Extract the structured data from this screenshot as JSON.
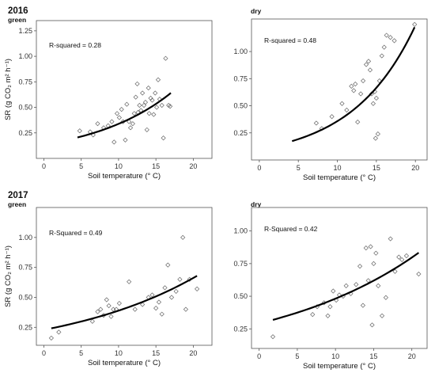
{
  "years": [
    "2016",
    "2017"
  ],
  "chart_data": [
    {
      "type": "scatter",
      "year": "2016",
      "panel": "green",
      "annotation": "R-squared = 0.28",
      "xlabel": "Soil temperature (° C)",
      "ylabel": "SR (g CO₂ m² h⁻¹)",
      "xlim": [
        -1,
        22.5
      ],
      "ylim": [
        0,
        1.35
      ],
      "xticks": [
        0,
        5,
        10,
        15,
        20
      ],
      "yticks": [
        0.25,
        0.5,
        0.75,
        1.0,
        1.25
      ],
      "ytick_labels": [
        "0.25",
        "0.50",
        "0.75",
        "1.00",
        "1.25"
      ],
      "points": [
        [
          4.8,
          0.27
        ],
        [
          6.2,
          0.26
        ],
        [
          6.6,
          0.23
        ],
        [
          7.2,
          0.34
        ],
        [
          8.0,
          0.3
        ],
        [
          8.6,
          0.32
        ],
        [
          9.1,
          0.36
        ],
        [
          9.4,
          0.16
        ],
        [
          9.8,
          0.44
        ],
        [
          10.1,
          0.4
        ],
        [
          10.4,
          0.48
        ],
        [
          10.6,
          0.36
        ],
        [
          10.9,
          0.18
        ],
        [
          11.1,
          0.53
        ],
        [
          11.4,
          0.36
        ],
        [
          11.6,
          0.3
        ],
        [
          11.9,
          0.34
        ],
        [
          12.1,
          0.44
        ],
        [
          12.3,
          0.6
        ],
        [
          12.5,
          0.73
        ],
        [
          12.6,
          0.45
        ],
        [
          12.8,
          0.52
        ],
        [
          13.0,
          0.47
        ],
        [
          13.2,
          0.64
        ],
        [
          13.4,
          0.52
        ],
        [
          13.6,
          0.55
        ],
        [
          13.8,
          0.28
        ],
        [
          14.0,
          0.69
        ],
        [
          14.1,
          0.44
        ],
        [
          14.3,
          0.59
        ],
        [
          14.5,
          0.57
        ],
        [
          14.7,
          0.43
        ],
        [
          14.9,
          0.64
        ],
        [
          15.1,
          0.5
        ],
        [
          15.3,
          0.77
        ],
        [
          15.5,
          0.58
        ],
        [
          15.8,
          0.52
        ],
        [
          16.0,
          0.2
        ],
        [
          16.3,
          0.98
        ],
        [
          16.7,
          0.52
        ],
        [
          16.9,
          0.51
        ]
      ],
      "fit": {
        "x0": 4.5,
        "x1": 17.0,
        "a": 0.1357,
        "b": 0.0913
      }
    },
    {
      "type": "scatter",
      "year": "2016",
      "panel": "dry",
      "annotation": "R-squared = 0.48",
      "xlabel": "Soil temperature (° C)",
      "ylabel": "",
      "xlim": [
        -1,
        21.5
      ],
      "ylim": [
        0,
        1.3
      ],
      "xticks": [
        0,
        5,
        10,
        15,
        20
      ],
      "yticks": [
        0.25,
        0.5,
        0.75,
        1.0
      ],
      "ytick_labels": [
        "0.25",
        "0.50",
        "0.75",
        "1.00"
      ],
      "points": [
        [
          7.3,
          0.34
        ],
        [
          8.0,
          0.29
        ],
        [
          9.3,
          0.4
        ],
        [
          10.6,
          0.52
        ],
        [
          11.2,
          0.46
        ],
        [
          11.8,
          0.68
        ],
        [
          12.1,
          0.64
        ],
        [
          12.3,
          0.7
        ],
        [
          12.6,
          0.35
        ],
        [
          13.0,
          0.61
        ],
        [
          13.3,
          0.73
        ],
        [
          13.7,
          0.88
        ],
        [
          14.0,
          0.91
        ],
        [
          14.2,
          0.83
        ],
        [
          14.4,
          0.61
        ],
        [
          14.6,
          0.52
        ],
        [
          14.8,
          0.63
        ],
        [
          14.9,
          0.2
        ],
        [
          15.0,
          0.57
        ],
        [
          15.2,
          0.24
        ],
        [
          15.4,
          0.73
        ],
        [
          15.7,
          0.96
        ],
        [
          16.0,
          1.04
        ],
        [
          16.3,
          1.15
        ],
        [
          16.8,
          1.13
        ],
        [
          17.3,
          1.1
        ],
        [
          19.9,
          1.25
        ]
      ],
      "fit": {
        "x0": 4.2,
        "x1": 19.9,
        "a": 0.1032,
        "b": 0.1243
      }
    },
    {
      "type": "scatter",
      "year": "2017",
      "panel": "green",
      "annotation": "R-Squared = 0.49",
      "xlabel": "Soil temperature (° C)",
      "ylabel": "SR (g CO₂ m² h⁻¹)",
      "xlim": [
        -1,
        22.5
      ],
      "ylim": [
        0.1,
        1.25
      ],
      "xticks": [
        0,
        5,
        10,
        15,
        20
      ],
      "yticks": [
        0.25,
        0.5,
        0.75,
        1.0
      ],
      "ytick_labels": [
        "0.25",
        "0.50",
        "0.75",
        "1.00"
      ],
      "points": [
        [
          1.0,
          0.16
        ],
        [
          2.0,
          0.21
        ],
        [
          6.5,
          0.3
        ],
        [
          7.2,
          0.38
        ],
        [
          7.6,
          0.4
        ],
        [
          8.0,
          0.35
        ],
        [
          8.4,
          0.48
        ],
        [
          8.7,
          0.43
        ],
        [
          9.0,
          0.34
        ],
        [
          9.3,
          0.4
        ],
        [
          9.7,
          0.4
        ],
        [
          10.1,
          0.45
        ],
        [
          11.4,
          0.63
        ],
        [
          12.2,
          0.4
        ],
        [
          13.2,
          0.44
        ],
        [
          14.0,
          0.5
        ],
        [
          14.5,
          0.52
        ],
        [
          15.0,
          0.41
        ],
        [
          15.4,
          0.46
        ],
        [
          15.8,
          0.36
        ],
        [
          16.2,
          0.58
        ],
        [
          16.6,
          0.77
        ],
        [
          17.1,
          0.5
        ],
        [
          17.7,
          0.55
        ],
        [
          18.2,
          0.65
        ],
        [
          18.6,
          1.0
        ],
        [
          19.0,
          0.4
        ],
        [
          19.5,
          0.65
        ],
        [
          20.5,
          0.57
        ]
      ],
      "fit": {
        "x0": 1.0,
        "x1": 20.5,
        "a": 0.2289,
        "b": 0.0531
      }
    },
    {
      "type": "scatter",
      "year": "2017",
      "panel": "dry",
      "annotation": "R-Squared = 0.42",
      "xlabel": "Soil temperature (° C)",
      "ylabel": "",
      "xlim": [
        -1,
        22
      ],
      "ylim": [
        0.1,
        1.18
      ],
      "xticks": [
        0,
        5,
        10,
        15,
        20
      ],
      "yticks": [
        0.25,
        0.5,
        0.75,
        1.0
      ],
      "ytick_labels": [
        "0.25",
        "0.50",
        "0.75",
        "1.00"
      ],
      "points": [
        [
          1.8,
          0.19
        ],
        [
          7.0,
          0.36
        ],
        [
          7.6,
          0.42
        ],
        [
          8.5,
          0.45
        ],
        [
          9.0,
          0.35
        ],
        [
          9.3,
          0.42
        ],
        [
          9.7,
          0.54
        ],
        [
          10.1,
          0.47
        ],
        [
          10.5,
          0.51
        ],
        [
          11.0,
          0.5
        ],
        [
          11.4,
          0.58
        ],
        [
          12.0,
          0.52
        ],
        [
          12.7,
          0.59
        ],
        [
          13.2,
          0.73
        ],
        [
          13.6,
          0.43
        ],
        [
          14.0,
          0.87
        ],
        [
          14.3,
          0.62
        ],
        [
          14.6,
          0.88
        ],
        [
          14.8,
          0.28
        ],
        [
          15.0,
          0.75
        ],
        [
          15.3,
          0.83
        ],
        [
          15.6,
          0.58
        ],
        [
          16.1,
          0.35
        ],
        [
          16.6,
          0.49
        ],
        [
          17.2,
          0.94
        ],
        [
          17.8,
          0.69
        ],
        [
          18.3,
          0.8
        ],
        [
          18.7,
          0.78
        ],
        [
          19.3,
          0.81
        ],
        [
          20.9,
          0.67
        ]
      ],
      "fit": {
        "x0": 1.8,
        "x1": 20.9,
        "a": 0.2913,
        "b": 0.0503
      }
    }
  ]
}
